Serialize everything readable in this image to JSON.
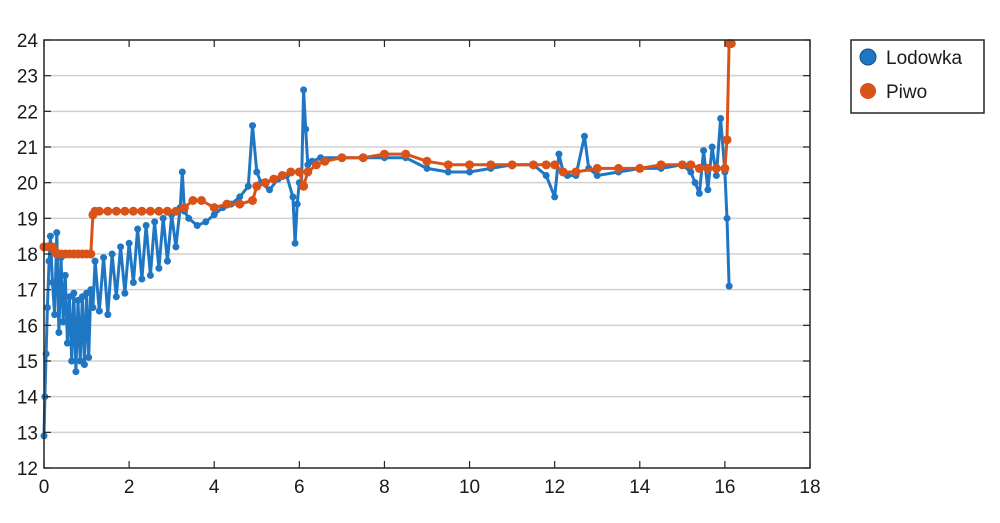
{
  "chart_data": {
    "type": "line",
    "title": "",
    "xlabel": "",
    "ylabel": "",
    "xlim": [
      0,
      18
    ],
    "ylim": [
      12,
      24
    ],
    "x_ticks": [
      0,
      2,
      4,
      6,
      8,
      10,
      12,
      14,
      16,
      18
    ],
    "y_ticks": [
      12,
      13,
      14,
      15,
      16,
      17,
      18,
      19,
      20,
      21,
      22,
      23,
      24
    ],
    "grid": "horizontal",
    "legend_position": "top-right-outside",
    "markers": true,
    "series": [
      {
        "name": "Lodowka",
        "color": "#1f77c4",
        "x": [
          0.0,
          0.02,
          0.05,
          0.08,
          0.12,
          0.15,
          0.2,
          0.25,
          0.3,
          0.35,
          0.4,
          0.45,
          0.5,
          0.55,
          0.6,
          0.65,
          0.7,
          0.75,
          0.8,
          0.85,
          0.9,
          0.95,
          1.0,
          1.05,
          1.1,
          1.15,
          1.2,
          1.3,
          1.4,
          1.5,
          1.6,
          1.7,
          1.8,
          1.9,
          2.0,
          2.1,
          2.2,
          2.3,
          2.4,
          2.5,
          2.6,
          2.7,
          2.8,
          2.9,
          3.0,
          3.1,
          3.2,
          3.25,
          3.3,
          3.4,
          3.6,
          3.8,
          4.0,
          4.2,
          4.4,
          4.6,
          4.8,
          4.9,
          5.0,
          5.1,
          5.3,
          5.5,
          5.7,
          5.85,
          5.9,
          5.95,
          6.0,
          6.05,
          6.1,
          6.15,
          6.2,
          6.3,
          6.5,
          7.0,
          7.5,
          8.0,
          8.5,
          9.0,
          9.5,
          10.0,
          10.5,
          11.0,
          11.5,
          11.8,
          12.0,
          12.1,
          12.2,
          12.3,
          12.5,
          12.7,
          12.8,
          13.0,
          13.5,
          14.0,
          14.5,
          15.0,
          15.2,
          15.3,
          15.4,
          15.5,
          15.6,
          15.7,
          15.8,
          15.9,
          16.0,
          16.05,
          16.1
        ],
        "values": [
          12.9,
          14.0,
          15.2,
          16.5,
          17.8,
          18.5,
          17.2,
          16.3,
          18.6,
          15.8,
          17.9,
          16.1,
          17.4,
          15.5,
          16.8,
          15.0,
          16.9,
          14.7,
          16.7,
          15.0,
          16.8,
          14.9,
          16.9,
          15.1,
          17.0,
          16.5,
          17.8,
          16.4,
          17.9,
          16.3,
          18.0,
          16.8,
          18.2,
          16.9,
          18.3,
          17.2,
          18.7,
          17.3,
          18.8,
          17.4,
          18.9,
          17.6,
          19.0,
          17.8,
          19.1,
          18.2,
          19.3,
          20.3,
          19.2,
          19.0,
          18.8,
          18.9,
          19.1,
          19.3,
          19.4,
          19.6,
          19.9,
          21.6,
          20.3,
          20.0,
          19.8,
          20.1,
          20.2,
          19.6,
          18.3,
          19.4,
          20.0,
          19.9,
          22.6,
          21.5,
          20.5,
          20.6,
          20.7,
          20.7,
          20.7,
          20.7,
          20.7,
          20.4,
          20.3,
          20.3,
          20.4,
          20.5,
          20.5,
          20.2,
          19.6,
          20.8,
          20.3,
          20.2,
          20.2,
          21.3,
          20.4,
          20.2,
          20.3,
          20.4,
          20.4,
          20.5,
          20.3,
          20.0,
          19.7,
          20.9,
          19.8,
          21.0,
          20.2,
          21.8,
          20.3,
          19.0,
          17.1
        ]
      },
      {
        "name": "Piwo",
        "color": "#d95319",
        "x": [
          0.0,
          0.1,
          0.2,
          0.25,
          0.3,
          0.4,
          0.5,
          0.6,
          0.7,
          0.8,
          0.9,
          1.0,
          1.1,
          1.15,
          1.2,
          1.3,
          1.5,
          1.7,
          1.9,
          2.1,
          2.3,
          2.5,
          2.7,
          2.9,
          3.1,
          3.3,
          3.5,
          3.7,
          4.0,
          4.3,
          4.6,
          4.9,
          5.0,
          5.2,
          5.4,
          5.6,
          5.8,
          6.0,
          6.1,
          6.2,
          6.4,
          6.6,
          7.0,
          7.5,
          8.0,
          8.5,
          9.0,
          9.5,
          10.0,
          10.5,
          11.0,
          11.5,
          11.8,
          12.0,
          12.2,
          12.5,
          13.0,
          13.5,
          14.0,
          14.5,
          15.0,
          15.2,
          15.4,
          15.6,
          15.8,
          16.0,
          16.05,
          16.1,
          16.15
        ],
        "values": [
          18.2,
          18.2,
          18.2,
          18.1,
          18.0,
          18.0,
          18.0,
          18.0,
          18.0,
          18.0,
          18.0,
          18.0,
          18.0,
          19.1,
          19.2,
          19.2,
          19.2,
          19.2,
          19.2,
          19.2,
          19.2,
          19.2,
          19.2,
          19.2,
          19.2,
          19.3,
          19.5,
          19.5,
          19.3,
          19.4,
          19.4,
          19.5,
          19.9,
          20.0,
          20.1,
          20.2,
          20.3,
          20.3,
          19.9,
          20.3,
          20.5,
          20.6,
          20.7,
          20.7,
          20.8,
          20.8,
          20.6,
          20.5,
          20.5,
          20.5,
          20.5,
          20.5,
          20.5,
          20.5,
          20.3,
          20.3,
          20.4,
          20.4,
          20.4,
          20.5,
          20.5,
          20.5,
          20.4,
          20.4,
          20.4,
          20.4,
          21.2,
          23.9,
          23.9
        ]
      }
    ]
  }
}
